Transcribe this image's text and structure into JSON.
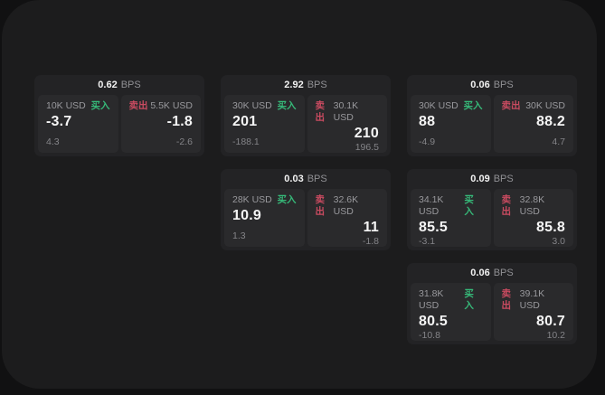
{
  "labels": {
    "bps": "BPS",
    "buy": "买入",
    "sell": "卖出"
  },
  "colors": {
    "buy": "#36b979",
    "sell": "#c94b60",
    "surface": "#1c1c1d",
    "card": "#232325",
    "panel": "#2a2a2c"
  },
  "cards": [
    {
      "bps": "0.62",
      "buy": {
        "amount": "10K USD",
        "value": "-3.7",
        "delta": "4.3"
      },
      "sell": {
        "amount": "5.5K USD",
        "value": "-1.8",
        "delta": "-2.6"
      }
    },
    {
      "bps": "2.92",
      "buy": {
        "amount": "30K USD",
        "value": "201",
        "delta": "-188.1"
      },
      "sell": {
        "amount": "30.1K USD",
        "value": "210",
        "delta": "196.5"
      }
    },
    {
      "bps": "0.06",
      "buy": {
        "amount": "30K USD",
        "value": "88",
        "delta": "-4.9"
      },
      "sell": {
        "amount": "30K USD",
        "value": "88.2",
        "delta": "4.7"
      }
    },
    {
      "bps": "0.03",
      "buy": {
        "amount": "28K USD",
        "value": "10.9",
        "delta": "1.3"
      },
      "sell": {
        "amount": "32.6K USD",
        "value": "11",
        "delta": "-1.8"
      }
    },
    {
      "bps": "0.09",
      "buy": {
        "amount": "34.1K USD",
        "value": "85.5",
        "delta": "-3.1"
      },
      "sell": {
        "amount": "32.8K USD",
        "value": "85.8",
        "delta": "3.0"
      }
    },
    {
      "bps": "0.06",
      "buy": {
        "amount": "31.8K USD",
        "value": "80.5",
        "delta": "-10.8"
      },
      "sell": {
        "amount": "39.1K USD",
        "value": "80.7",
        "delta": "10.2"
      }
    }
  ]
}
